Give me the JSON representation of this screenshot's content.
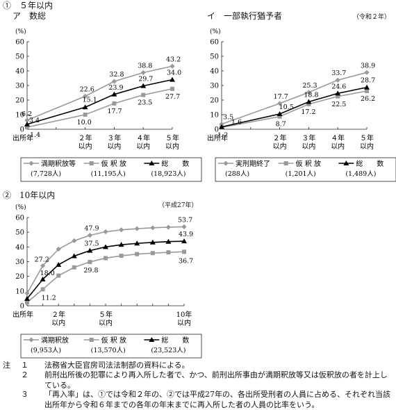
{
  "section1": {
    "heading": "①　５年以内"
  },
  "section2": {
    "heading": "②　10年以内",
    "note": "（平成27年）"
  },
  "chart_data": [
    {
      "id": "a",
      "type": "line",
      "title": "ア　数総",
      "note": "",
      "ylabel": "(%)",
      "ylim": [
        0,
        60
      ],
      "yticks": [
        0,
        10,
        20,
        30,
        40,
        50,
        60
      ],
      "x": [
        0,
        1,
        2,
        3,
        4,
        5
      ],
      "xtick_labels": [
        "出所年",
        "２年\n以内",
        "３年\n以内",
        "４年\n以内",
        "５年\n以内"
      ],
      "xtick_positions": [
        0,
        2,
        3,
        4,
        5
      ],
      "series": [
        {
          "name": "満期釈放等",
          "count": "(7,728人)",
          "marker": "diamond",
          "color": "#999999",
          "values": [
            6.2,
            22.6,
            32.8,
            38.8,
            43.2
          ],
          "x": [
            0,
            2,
            3,
            4,
            5
          ],
          "hidden_values": [
            15.5
          ],
          "labels": [
            "6.2",
            "22.6",
            "32.8",
            "38.8",
            "43.2"
          ]
        },
        {
          "name": "仮 釈 放",
          "count": "(11,195人)",
          "marker": "square",
          "color": "#999999",
          "values": [
            1.4,
            10.0,
            17.7,
            23.5,
            27.7
          ],
          "x": [
            0,
            2,
            3,
            4,
            5
          ],
          "labels": [
            "1.4",
            "10.0",
            "17.7",
            "23.5",
            "27.7"
          ]
        },
        {
          "name": "総　　数",
          "count": "(18,923人)",
          "marker": "triangle",
          "color": "#000000",
          "values": [
            3.4,
            15.1,
            23.9,
            29.7,
            34.0
          ],
          "x": [
            0,
            2,
            3,
            4,
            5
          ],
          "labels": [
            "3.4",
            "15.1",
            "23.9",
            "29.7",
            "34.0"
          ]
        }
      ]
    },
    {
      "id": "b",
      "type": "line",
      "title": "イ　一部執行猶予者",
      "note": "（令和２年）",
      "ylabel": "(%)",
      "ylim": [
        0,
        60
      ],
      "yticks": [
        0,
        10,
        20,
        30,
        40,
        50,
        60
      ],
      "x": [
        0,
        1,
        2,
        3,
        4,
        5
      ],
      "xtick_labels": [
        "出所年",
        "２年\n以内",
        "３年\n以内",
        "４年\n以内",
        "５年\n以内"
      ],
      "xtick_positions": [
        0,
        2,
        3,
        4,
        5
      ],
      "series": [
        {
          "name": "実刑期終了",
          "count": "(288人)",
          "marker": "diamond",
          "color": "#999999",
          "values": [
            3.5,
            17.7,
            25.3,
            33.7,
            38.9
          ],
          "x": [
            0,
            2,
            3,
            4,
            5
          ],
          "labels": [
            "3.5",
            "17.7",
            "25.3",
            "33.7",
            "38.9"
          ]
        },
        {
          "name": "仮 釈 放",
          "count": "(1,201人)",
          "marker": "square",
          "color": "#999999",
          "values": [
            1.2,
            8.7,
            17.2,
            22.5,
            26.2
          ],
          "x": [
            0,
            2,
            3,
            4,
            5
          ],
          "labels": [
            "1.2",
            "8.7",
            "17.2",
            "22.5",
            "26.2"
          ]
        },
        {
          "name": "総　　数",
          "count": "(1,489人)",
          "marker": "triangle",
          "color": "#000000",
          "values": [
            1.6,
            10.5,
            18.8,
            24.6,
            28.7
          ],
          "x": [
            0,
            2,
            3,
            4,
            5
          ],
          "labels": [
            "1.6",
            "10.5",
            "18.8",
            "24.6",
            "28.7"
          ]
        }
      ]
    },
    {
      "id": "c",
      "type": "line",
      "title": "",
      "ylabel": "(%)",
      "ylim": [
        0,
        60
      ],
      "yticks": [
        0,
        10,
        20,
        30,
        40,
        50,
        60
      ],
      "xtick_labels": [
        "出所年",
        "２年\n以内",
        "５年\n以内",
        "10年\n以内"
      ],
      "xtick_positions": [
        0,
        2,
        5,
        10
      ],
      "series": [
        {
          "name": "満期釈放",
          "count": "(9,953人)",
          "marker": "diamond",
          "color": "#999999",
          "x": [
            0,
            1,
            2,
            3,
            4,
            5,
            6,
            7,
            8,
            9,
            10
          ],
          "values": [
            8.5,
            27.2,
            38.5,
            44.2,
            47.9,
            50.3,
            51.6,
            52.4,
            53.0,
            53.4,
            53.7
          ],
          "label_points": [
            [
              1,
              "27.2"
            ],
            [
              4,
              "47.9"
            ],
            [
              10,
              "53.7"
            ]
          ]
        },
        {
          "name": "仮 釈 放",
          "count": "(13,570人)",
          "marker": "square",
          "color": "#999999",
          "x": [
            0,
            1,
            2,
            3,
            4,
            5,
            6,
            7,
            8,
            9,
            10
          ],
          "values": [
            2.3,
            11.2,
            20.5,
            26.1,
            29.8,
            32.4,
            34.0,
            35.1,
            35.8,
            36.3,
            36.7
          ],
          "label_points": [
            [
              1,
              "11.2"
            ],
            [
              4,
              "29.8"
            ],
            [
              10,
              "36.7"
            ]
          ]
        },
        {
          "name": "総　　数",
          "count": "(23,523人)",
          "marker": "triangle",
          "color": "#000000",
          "x": [
            0,
            1,
            2,
            3,
            4,
            5,
            6,
            7,
            8,
            9,
            10
          ],
          "values": [
            4.8,
            18.0,
            27.9,
            33.8,
            37.5,
            40.0,
            41.5,
            42.4,
            43.1,
            43.6,
            43.9
          ],
          "label_points": [
            [
              1,
              "18.0"
            ],
            [
              4,
              "37.5"
            ],
            [
              10,
              "43.9"
            ]
          ]
        }
      ]
    }
  ],
  "notes": {
    "mark": "注",
    "items": [
      {
        "num": "１",
        "text": "法務省大臣官房司法法制部の資料による。"
      },
      {
        "num": "２",
        "text": "前刑出所後の犯罪により再入所した者で、かつ、前刑出所事由が満期釈放等又は仮釈放の者を計上している。"
      },
      {
        "num": "３",
        "text": "「再入率」は、①では令和２年の、②では平成27年の、各出所受刑者の人員に占める、それぞれ当該出所年から令和６年までの各年の年末までに再入所した者の人員の比率をいう。"
      }
    ]
  }
}
